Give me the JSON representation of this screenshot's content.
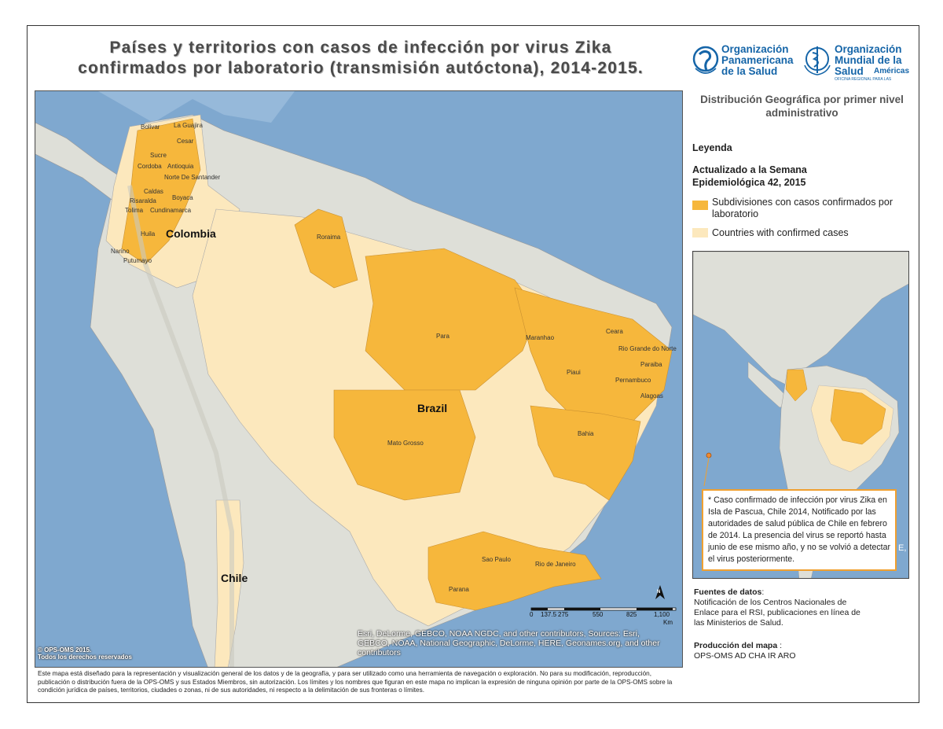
{
  "title": {
    "line1": "Países y territorios con casos de infección por virus Zika",
    "line2": "confirmados por laboratorio (transmisión autóctona), 2014-2015."
  },
  "logos": {
    "paho": "Organización Panamericana de la Salud",
    "who": "Organización Mundial de la Salud",
    "who_region": "Américas",
    "who_small": "OFICINA REGIONAL PARA LAS"
  },
  "panel": {
    "distribution": "Distribución Geográfica por primer nivel administrativo",
    "legend_title": "Leyenda",
    "updated": "Actualizado a la Semana Epidemiológica 42, 2015",
    "legend_items": [
      {
        "label": "Subdivisiones con casos confirmados por laboratorio",
        "color": "#f6b73c"
      },
      {
        "label": "Countries with confirmed cases",
        "color": "#fce8bd"
      }
    ]
  },
  "note": "* Caso confirmado de infección por virus Zika en Isla de Pascua, Chile 2014, Notificado por las autoridades de salud pública de Chile en febrero de 2014. La presencia del virus se reportó hasta junio de ese mismo año, y no se volvió a detectar el virus posteriormente.",
  "inset_fragment": "E,",
  "sources": {
    "heading": "Fuentes de datos",
    "colon": ":",
    "text": "Notificación de los Centros Nacionales de Enlace para el RSI, publicaciones en línea de las Ministerios de Salud."
  },
  "production": {
    "heading": "Producción del mapa",
    "colon": " :",
    "text": "OPS-OMS AD CHA IR ARO"
  },
  "map": {
    "countries": [
      "Colombia",
      "Brazil",
      "Chile"
    ],
    "colombia_departments": [
      "Bolivar",
      "La Guajira",
      "Cesar",
      "Sucre",
      "Cordoba",
      "Antioquia",
      "Norte De Santander",
      "Caldas",
      "Boyaca",
      "Risaralda",
      "Tolima",
      "Cundinamarca",
      "Huila",
      "Narino",
      "Putumayo"
    ],
    "brazil_states": [
      "Roraima",
      "Para",
      "Maranhao",
      "Ceara",
      "Rio Grande do Norte",
      "Piaui",
      "Paraiba",
      "Pernambuco",
      "Alagoas",
      "Bahia",
      "Mato Grosso",
      "Sao Paulo",
      "Rio de Janeiro",
      "Parana"
    ],
    "scale_labels": [
      "0",
      "137.5",
      "275",
      "550",
      "825",
      "1,100"
    ],
    "scale_unit": "Km",
    "north": "N",
    "credit": "Esri, DeLorme, GEBCO, NOAA NGDC, and other contributors, Sources: Esri, GEBCO, NOAA, National Geographic, DeLorme, HERE, Geonames.org, and other contributors",
    "copyright_line1": "© OPS-OMS 2015.",
    "copyright_line2": "Todos los derechos reservados"
  },
  "disclaimer": "Este mapa está diseñado para la representación y visualización general de los datos y de la geografía, y para ser utilizado como una herramienta de navegación o exploración. No para su modificación, reproducción, publicación o distribución fuera de la OPS-OMS y sus Estados Miembros, sin autorización. Los límites y los nombres que figuran en este mapa no implican la expresión de ninguna opinión por parte de la OPS-OMS sobre la condición jurídica de países, territorios, ciudades o zonas, ni de sus autoridades, ni respecto a la delimitación de sus fronteras o límites.",
  "colors": {
    "ocean": "#7fa8cf",
    "land": "#dedfd8",
    "subdivision": "#f6b73c",
    "country": "#fce8bd"
  }
}
